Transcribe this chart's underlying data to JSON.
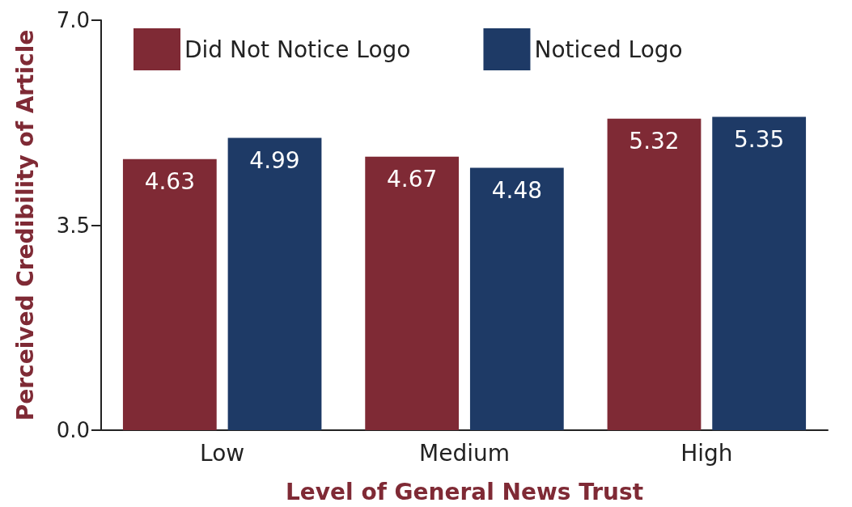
{
  "chart_data": {
    "type": "bar",
    "xlabel": "Level of General News Trust",
    "ylabel": "Perceived Credibility of Article",
    "categories": [
      "Low",
      "Medium",
      "High"
    ],
    "series": [
      {
        "name": "Did Not Notice Logo",
        "color": "#7f2a35",
        "values": [
          4.63,
          4.67,
          5.32
        ]
      },
      {
        "name": "Noticed Logo",
        "color": "#1e3a66",
        "values": [
          4.99,
          4.48,
          5.35
        ]
      }
    ],
    "ylim": [
      0,
      7
    ],
    "yticks": [
      {
        "value": 0,
        "label": "0.0"
      },
      {
        "value": 3.5,
        "label": "3.5"
      },
      {
        "value": 7,
        "label": "7.0"
      }
    ],
    "grid": false,
    "legend": "top left",
    "data_labels": true
  }
}
